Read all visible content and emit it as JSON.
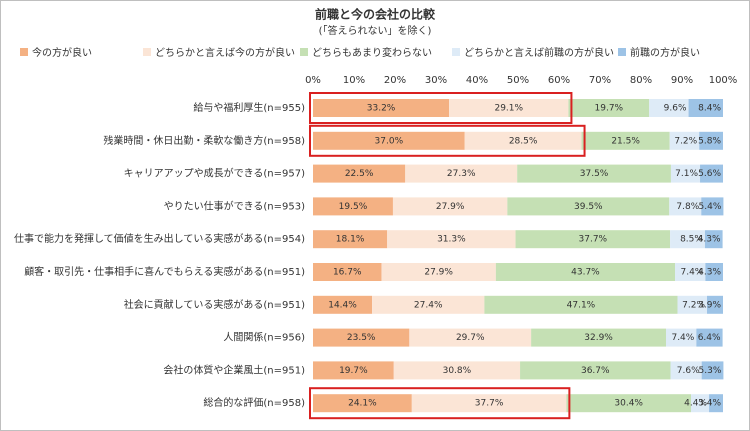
{
  "chart_data": {
    "type": "stacked_barh",
    "title": "前職と今の会社の比較",
    "subtitle": "(「答えられない」を除く)",
    "categories": [
      "給与や福利厚生(n=955)",
      "残業時間・休日出勤・柔軟な働き方(n=958)",
      "キャリアアップや成長ができる(n=957)",
      "やりたい仕事ができる(n=953)",
      "仕事で能力を発揮して価値を生み出している実感がある(n=954)",
      "顧客・取引先・仕事相手に喜んでもらえる実感がある(n=951)",
      "社会に貢献している実感がある(n=951)",
      "人間関係(n=956)",
      "会社の体質や企業風土(n=951)",
      "総合的な評価(n=958)"
    ],
    "series": [
      {
        "name": "今の方が良い",
        "color": "#f4b183",
        "values": [
          33.2,
          37.0,
          22.5,
          19.5,
          18.1,
          16.7,
          14.4,
          23.5,
          19.7,
          24.1
        ],
        "value_labels": [
          "33.2%",
          "37.0%",
          "22.5%",
          "19.5%",
          "18.1%",
          "16.7%",
          "14.4%",
          "23.5%",
          "19.7%",
          "24.1%"
        ]
      },
      {
        "name": "どちらかと言えば今の方が良い",
        "color": "#fbe5d6",
        "values": [
          29.1,
          28.5,
          27.3,
          27.9,
          31.3,
          27.9,
          27.4,
          29.7,
          30.8,
          37.7
        ],
        "value_labels": [
          "29.1%",
          "28.5%",
          "27.3%",
          "27.9%",
          "31.3%",
          "27.9%",
          "27.4%",
          "29.7%",
          "30.8%",
          "37.7%"
        ]
      },
      {
        "name": "どちらもあまり変わらない",
        "color": "#c5e0b4",
        "values": [
          19.7,
          21.5,
          37.5,
          39.5,
          37.7,
          43.7,
          47.1,
          32.9,
          36.7,
          30.4
        ],
        "value_labels": [
          "19.7%",
          "21.5%",
          "37.5%",
          "39.5%",
          "37.7%",
          "43.7%",
          "47.1%",
          "32.9%",
          "36.7%",
          "30.4%"
        ]
      },
      {
        "name": "どちらかと言えば前職の方が良い",
        "color": "#deebf7",
        "values": [
          9.6,
          7.2,
          7.1,
          7.8,
          8.5,
          7.4,
          7.2,
          7.4,
          7.6,
          4.4
        ],
        "value_labels": [
          "9.6%",
          "7.2%",
          "7.1%",
          "7.8%",
          "8.5%",
          "7.4%",
          "7.2%",
          "7.4%",
          "7.6%",
          "4.4%"
        ]
      },
      {
        "name": "前職の方が良い",
        "color": "#9dc3e6",
        "values": [
          8.4,
          5.8,
          5.6,
          5.4,
          4.3,
          4.3,
          3.9,
          6.4,
          5.3,
          3.4
        ],
        "value_labels": [
          "8.4%",
          "5.8%",
          "5.6%",
          "5.4%",
          "4.3%",
          "4.3%",
          "3.9%",
          "6.4%",
          "5.3%",
          "3.4%"
        ]
      }
    ],
    "xlim": [
      0,
      100
    ],
    "xticks": [
      {
        "value": 0,
        "label": "0%"
      },
      {
        "value": 10,
        "label": "10%"
      },
      {
        "value": 20,
        "label": "20%"
      },
      {
        "value": 30,
        "label": "30%"
      },
      {
        "value": 40,
        "label": "40%"
      },
      {
        "value": 50,
        "label": "50%"
      },
      {
        "value": 60,
        "label": "60%"
      },
      {
        "value": 70,
        "label": "70%"
      },
      {
        "value": 80,
        "label": "80%"
      },
      {
        "value": 90,
        "label": "90%"
      },
      {
        "value": 100,
        "label": "100%"
      }
    ]
  }
}
